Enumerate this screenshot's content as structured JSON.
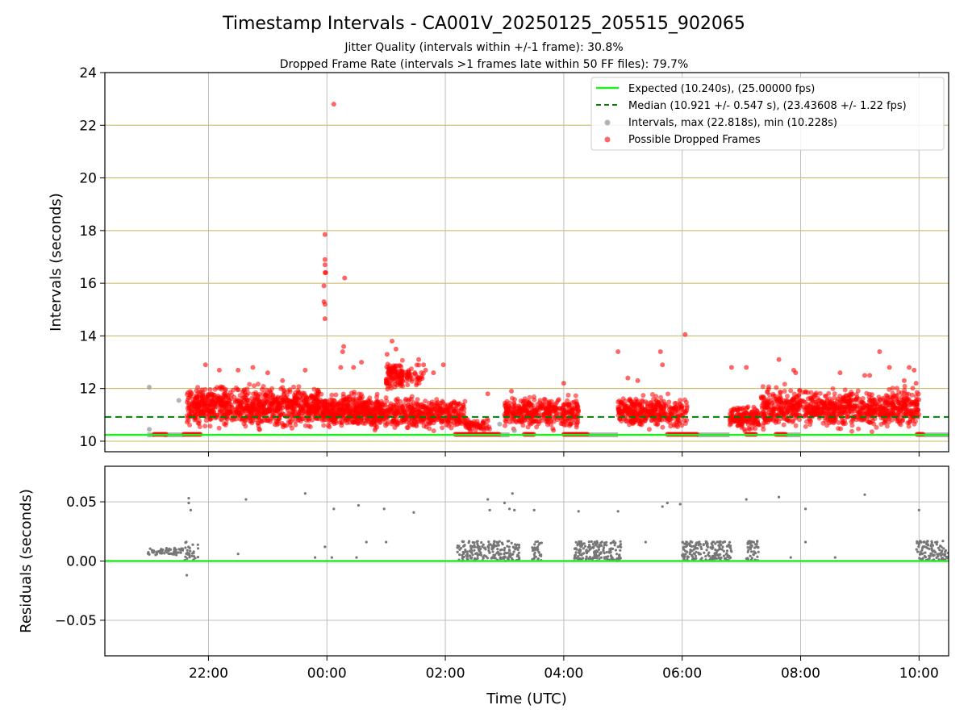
{
  "figure": {
    "title": "Timestamp Intervals - CA001V_20250125_205515_902065",
    "subtitle_1": "Jitter Quality (intervals within +/-1 frame): 30.8%",
    "subtitle_2": "Dropped Frame Rate (intervals >1 frames late within 50 FF files): 79.7%"
  },
  "colors": {
    "expected": "#22ee22",
    "median": "#008000",
    "intervals": "#999999",
    "dropped": "#ff0000",
    "residuals": "#777777",
    "hgrid_top": "#c8b45a",
    "grid": "#bdbdbd"
  },
  "chart_data": [
    {
      "type": "scatter",
      "ylabel": "Intervals (seconds)",
      "xlim": [
        "20:15",
        "10:30"
      ],
      "ylim": [
        9.6,
        24
      ],
      "yticks": [
        10,
        12,
        14,
        16,
        18,
        20,
        22,
        24
      ],
      "grid": true,
      "legend_position": "top-right",
      "legend": [
        "Expected (10.240s), (25.00000 fps)",
        "Median (10.921 +/- 0.547 s), (23.43608 +/- 1.22 fps)",
        "Intervals, max (22.818s), min (10.228s)",
        "Possible Dropped Frames"
      ],
      "reference_lines": {
        "expected": 10.24,
        "median": 10.921
      },
      "series": [
        {
          "name": "Possible Dropped Frames",
          "points_time_interval": [
            [
              "00:07",
              22.8
            ],
            [
              "23:58",
              17.85
            ],
            [
              "23:58",
              16.9
            ],
            [
              "23:58",
              16.7
            ],
            [
              "23:58",
              16.4
            ],
            [
              "23:59",
              16.4
            ],
            [
              "23:57",
              15.9
            ],
            [
              "23:57",
              15.3
            ],
            [
              "23:58",
              15.2
            ],
            [
              "23:58",
              14.65
            ],
            [
              "00:18",
              16.2
            ],
            [
              "00:17",
              13.6
            ],
            [
              "00:16",
              13.4
            ],
            [
              "00:14",
              12.8
            ],
            [
              "00:27",
              12.8
            ],
            [
              "00:35",
              13.0
            ],
            [
              "01:06",
              13.8
            ],
            [
              "01:10",
              13.5
            ],
            [
              "01:01",
              13.3
            ],
            [
              "01:33",
              13.1
            ],
            [
              "01:38",
              12.9
            ],
            [
              "01:40",
              12.7
            ],
            [
              "01:48",
              12.6
            ],
            [
              "01:58",
              12.9
            ],
            [
              "21:57",
              12.9
            ],
            [
              "22:11",
              12.7
            ],
            [
              "22:30",
              12.7
            ],
            [
              "22:45",
              12.8
            ],
            [
              "23:00",
              12.6
            ],
            [
              "23:15",
              12.3
            ],
            [
              "23:38",
              12.7
            ],
            [
              "04:00",
              12.2
            ],
            [
              "03:07",
              11.9
            ],
            [
              "02:43",
              11.8
            ],
            [
              "04:55",
              13.4
            ],
            [
              "05:05",
              12.4
            ],
            [
              "05:15",
              12.3
            ],
            [
              "05:38",
              13.4
            ],
            [
              "05:40",
              12.9
            ],
            [
              "06:03",
              14.05
            ],
            [
              "06:50",
              12.8
            ],
            [
              "07:05",
              12.8
            ],
            [
              "07:38",
              13.1
            ],
            [
              "07:53",
              12.7
            ],
            [
              "07:55",
              12.6
            ],
            [
              "08:40",
              12.6
            ],
            [
              "09:05",
              12.5
            ],
            [
              "09:10",
              12.5
            ],
            [
              "09:20",
              13.4
            ],
            [
              "09:30",
              12.8
            ],
            [
              "09:45",
              12.3
            ],
            [
              "09:50",
              12.8
            ],
            [
              "09:55",
              12.7
            ],
            [
              "09:57",
              12.2
            ],
            [
              "21:40",
              11.65
            ]
          ],
          "clusters": [
            {
              "t0": "21:38",
              "t1": "23:55",
              "ymin": 10.3,
              "ymax": 12.3,
              "count": 900
            },
            {
              "t0": "23:55",
              "t1": "00:58",
              "ymin": 10.3,
              "ymax": 12.0,
              "count": 480
            },
            {
              "t0": "01:00",
              "t1": "01:17",
              "ymin": 11.8,
              "ymax": 13.2,
              "count": 110
            },
            {
              "t0": "01:20",
              "t1": "01:38",
              "ymin": 12.0,
              "ymax": 13.0,
              "count": 40
            },
            {
              "t0": "00:58",
              "t1": "02:20",
              "ymin": 10.3,
              "ymax": 11.8,
              "count": 420
            },
            {
              "t0": "02:20",
              "t1": "02:45",
              "ymin": 10.3,
              "ymax": 10.9,
              "count": 60
            },
            {
              "t0": "03:00",
              "t1": "04:15",
              "ymin": 10.3,
              "ymax": 11.9,
              "count": 380
            },
            {
              "t0": "04:55",
              "t1": "06:05",
              "ymin": 10.3,
              "ymax": 11.9,
              "count": 360
            },
            {
              "t0": "06:48",
              "t1": "07:18",
              "ymin": 10.3,
              "ymax": 11.5,
              "count": 150
            },
            {
              "t0": "07:20",
              "t1": "10:00",
              "ymin": 10.3,
              "ymax": 12.2,
              "count": 900
            }
          ],
          "floor_runs_at_10_24": [
            [
              "21:05",
              "21:17"
            ],
            [
              "21:35",
              "21:52"
            ],
            [
              "02:10",
              "02:55"
            ],
            [
              "03:20",
              "03:30"
            ],
            [
              "04:00",
              "04:25"
            ],
            [
              "05:45",
              "06:15"
            ],
            [
              "07:05",
              "07:15"
            ],
            [
              "07:35",
              "07:45"
            ],
            [
              "09:58",
              "10:05"
            ]
          ]
        },
        {
          "name": "Intervals, max (22.818s), min (10.228s)",
          "points_time_interval": [
            [
              "21:00",
              12.05
            ],
            [
              "21:00",
              10.45
            ],
            [
              "21:30",
              11.55
            ],
            [
              "02:55",
              10.65
            ],
            [
              "03:10",
              10.4
            ]
          ],
          "baseline_runs_at_10_24": [
            [
              "20:58",
              "21:05"
            ],
            [
              "21:15",
              "21:35"
            ],
            [
              "02:55",
              "03:05"
            ],
            [
              "04:25",
              "04:55"
            ],
            [
              "06:15",
              "06:48"
            ],
            [
              "07:45",
              "08:00"
            ],
            [
              "10:05",
              "10:30"
            ]
          ]
        }
      ]
    },
    {
      "type": "scatter",
      "xlabel": "Time (UTC)",
      "ylabel": "Residuals (seconds)",
      "xlim": [
        "20:15",
        "10:30"
      ],
      "ylim": [
        -0.08,
        0.08
      ],
      "yticks": [
        -0.05,
        0.0,
        0.05
      ],
      "ytick_labels": [
        "−0.05",
        "0.00",
        "0.05"
      ],
      "xticks": [
        "22:00",
        "00:00",
        "02:00",
        "04:00",
        "06:00",
        "08:00",
        "10:00"
      ],
      "grid": true,
      "zero_line": 0.0,
      "series": [
        {
          "name": "",
          "points_time_residual": [
            [
              "21:40",
              0.053
            ],
            [
              "21:40",
              0.049
            ],
            [
              "21:42",
              0.043
            ],
            [
              "21:38",
              -0.012
            ],
            [
              "22:38",
              0.052
            ],
            [
              "23:38",
              0.057
            ],
            [
              "00:07",
              0.044
            ],
            [
              "00:32",
              0.047
            ],
            [
              "00:58",
              0.044
            ],
            [
              "01:28",
              0.041
            ],
            [
              "02:43",
              0.052
            ],
            [
              "02:45",
              0.043
            ],
            [
              "03:00",
              0.049
            ],
            [
              "03:05",
              0.044
            ],
            [
              "03:10",
              0.043
            ],
            [
              "03:08",
              0.057
            ],
            [
              "03:30",
              0.043
            ],
            [
              "04:15",
              0.042
            ],
            [
              "04:55",
              0.042
            ],
            [
              "05:45",
              0.049
            ],
            [
              "05:40",
              0.046
            ],
            [
              "05:58",
              0.048
            ],
            [
              "07:05",
              0.052
            ],
            [
              "07:38",
              0.054
            ],
            [
              "08:05",
              0.044
            ],
            [
              "09:05",
              0.056
            ],
            [
              "10:00",
              0.043
            ],
            [
              "22:30",
              0.006
            ],
            [
              "23:58",
              0.012
            ],
            [
              "00:05",
              0.003
            ],
            [
              "00:30",
              0.003
            ],
            [
              "00:40",
              0.016
            ],
            [
              "01:00",
              0.016
            ],
            [
              "23:48",
              0.003
            ],
            [
              "04:12",
              0.003
            ],
            [
              "04:55",
              0.012
            ],
            [
              "05:23",
              0.016
            ],
            [
              "06:50",
              0.008
            ],
            [
              "07:50",
              0.003
            ],
            [
              "08:05",
              0.016
            ],
            [
              "08:35",
              0.003
            ]
          ],
          "bands": [
            {
              "t0": "20:58",
              "t1": "21:35",
              "ymin": 0.005,
              "ymax": 0.011,
              "count": 60
            },
            {
              "t0": "21:35",
              "t1": "21:50",
              "ymin": 0.0,
              "ymax": 0.017,
              "count": 30
            },
            {
              "t0": "02:12",
              "t1": "02:55",
              "ymin": 0.0,
              "ymax": 0.017,
              "count": 140
            },
            {
              "t0": "02:55",
              "t1": "03:15",
              "ymin": 0.0,
              "ymax": 0.017,
              "count": 60
            },
            {
              "t0": "03:28",
              "t1": "03:38",
              "ymin": 0.0,
              "ymax": 0.017,
              "count": 30
            },
            {
              "t0": "04:10",
              "t1": "04:58",
              "ymin": 0.0,
              "ymax": 0.017,
              "count": 180
            },
            {
              "t0": "06:00",
              "t1": "06:50",
              "ymin": 0.0,
              "ymax": 0.017,
              "count": 180
            },
            {
              "t0": "07:05",
              "t1": "07:18",
              "ymin": 0.0,
              "ymax": 0.017,
              "count": 45
            },
            {
              "t0": "09:57",
              "t1": "10:30",
              "ymin": 0.0,
              "ymax": 0.017,
              "count": 100
            }
          ]
        }
      ]
    }
  ]
}
